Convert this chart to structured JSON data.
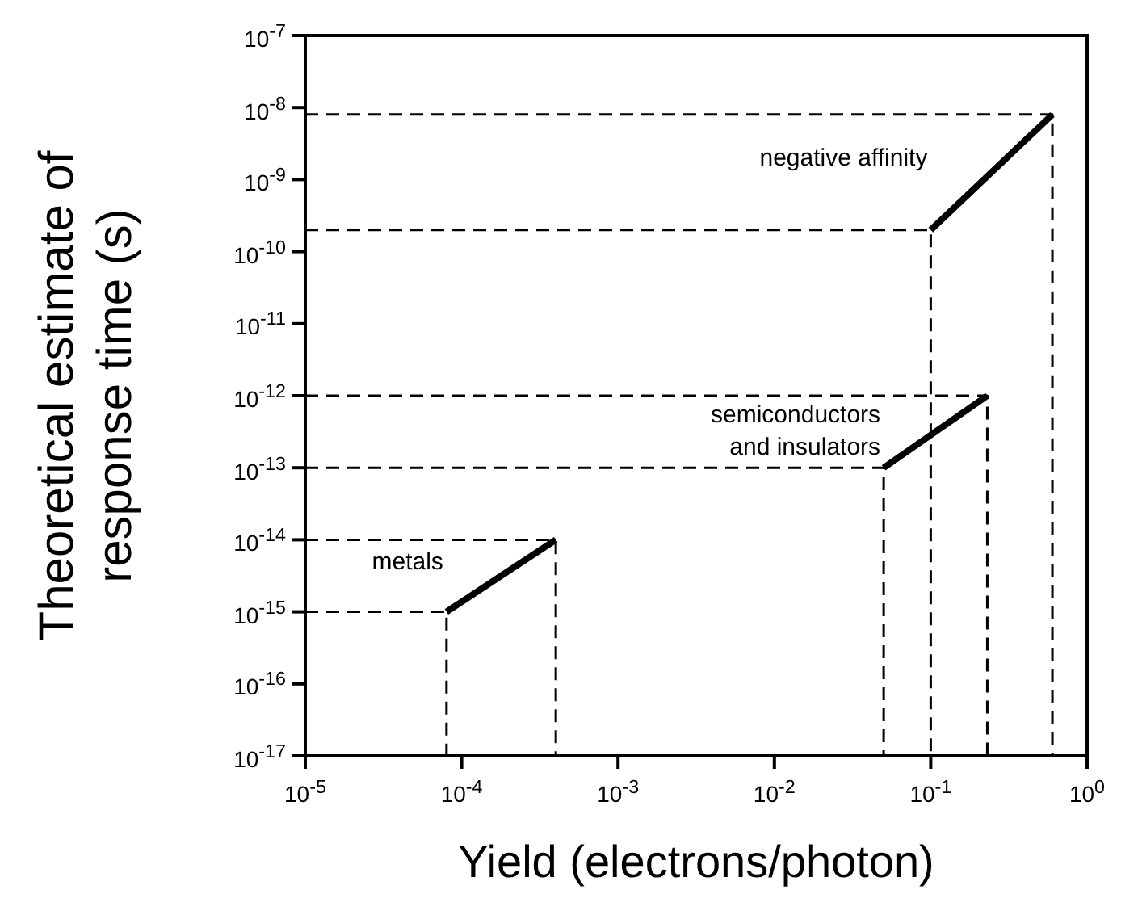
{
  "chart_data": {
    "type": "line",
    "xlabel": "Yield (electrons/photon)",
    "ylabel": "Theoretical estimate of response time (s)",
    "log": "xy",
    "grid": false,
    "legend": false,
    "marker": "none",
    "line_style": "solid",
    "xlim": [
      1e-05,
      1
    ],
    "ylim": [
      1e-17,
      1e-07
    ],
    "xticks": [
      {
        "value": 1e-05,
        "label": "10$^{-5}$"
      },
      {
        "value": 0.0001,
        "label": "10$^{-4}$"
      },
      {
        "value": 0.001,
        "label": "10$^{-3}$"
      },
      {
        "value": 0.01,
        "label": "10$^{-2}$"
      },
      {
        "value": 0.1,
        "label": "10$^{-1}$"
      },
      {
        "value": 1,
        "label": "10$^{0}$"
      }
    ],
    "yticks": [
      {
        "value": 1e-17,
        "label": "10$^{-17}$"
      },
      {
        "value": 1e-16,
        "label": "10$^{-16}$"
      },
      {
        "value": 1e-15,
        "label": "10$^{-15}$"
      },
      {
        "value": 1e-14,
        "label": "10$^{-14}$"
      },
      {
        "value": 1e-13,
        "label": "10$^{-13}$"
      },
      {
        "value": 1e-12,
        "label": "10$^{-12}$"
      },
      {
        "value": 1e-11,
        "label": "10$^{-11}$"
      },
      {
        "value": 1e-10,
        "label": "10$^{-10}$"
      },
      {
        "value": 1e-09,
        "label": "10$^{-9}$"
      },
      {
        "value": 1e-08,
        "label": "10$^{-8}$"
      },
      {
        "value": 1e-07,
        "label": "10$^{-7}$"
      }
    ],
    "series": [
      {
        "name": "metals",
        "color": "#000000",
        "x": [
          8e-05,
          0.0004
        ],
        "values": [
          1e-15,
          1e-14
        ]
      },
      {
        "name": "semiconductors and insulators",
        "color": "#000000",
        "x": [
          0.05,
          0.23
        ],
        "values": [
          1e-13,
          1e-12
        ]
      },
      {
        "name": "negative affinity",
        "color": "#000000",
        "x": [
          0.1,
          0.6
        ],
        "values": [
          2e-10,
          8e-09
        ]
      },
      {
        "color": "#000000",
        "line_style": "dashed",
        "x": [
          1e-05,
          8e-05,
          8e-05
        ],
        "values": [
          1e-15,
          1e-15,
          1e-17
        ]
      },
      {
        "color": "#000000",
        "line_style": "dashed",
        "x": [
          1e-05,
          0.0004,
          0.0004
        ],
        "values": [
          1e-14,
          1e-14,
          1e-17
        ]
      },
      {
        "color": "#000000",
        "line_style": "dashed",
        "x": [
          1e-05,
          0.05,
          0.05
        ],
        "values": [
          1e-13,
          1e-13,
          1e-17
        ]
      },
      {
        "color": "#000000",
        "line_style": "dashed",
        "x": [
          1e-05,
          0.23,
          0.23
        ],
        "values": [
          1e-12,
          1e-12,
          1e-17
        ]
      },
      {
        "color": "#000000",
        "line_style": "dashed",
        "x": [
          1e-05,
          0.1,
          0.1
        ],
        "values": [
          2e-10,
          2e-10,
          1e-17
        ]
      },
      {
        "color": "#000000",
        "line_style": "dashed",
        "x": [
          1e-05,
          0.6,
          0.6
        ],
        "values": [
          8e-09,
          8e-09,
          1e-17
        ]
      }
    ]
  }
}
